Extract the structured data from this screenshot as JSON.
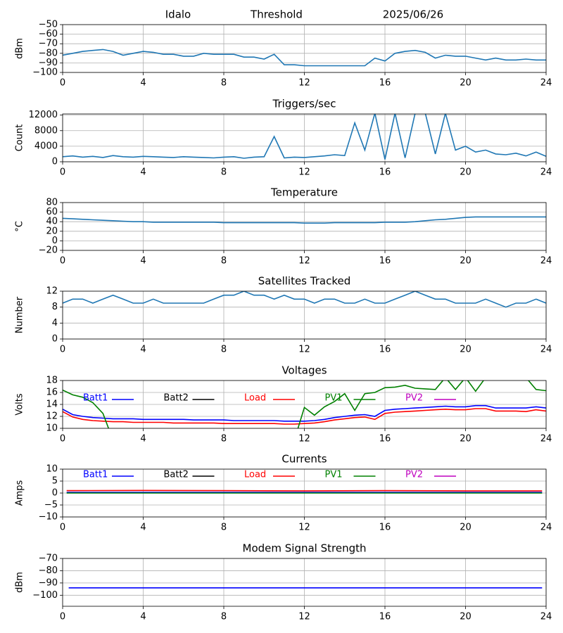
{
  "chart_data": [
    {
      "type": "line",
      "title_left": "Idalo",
      "title": "Threshold",
      "title_right": "2025/06/26",
      "ylabel": "dBm",
      "xlim": [
        0,
        24
      ],
      "xticks": [
        0,
        4,
        8,
        12,
        16,
        20,
        24
      ],
      "ylim": [
        -100,
        -50
      ],
      "yticks": [
        {
          "value": -100,
          "label": "−100"
        },
        {
          "value": -90,
          "label": "−90"
        },
        {
          "value": -80,
          "label": "−80"
        },
        {
          "value": -70,
          "label": "−70"
        },
        {
          "value": -60,
          "label": "−60"
        },
        {
          "value": -50,
          "label": "−50"
        }
      ],
      "grid": true,
      "x": [
        0,
        0.5,
        1,
        1.5,
        2,
        2.5,
        3,
        3.5,
        4,
        4.5,
        5,
        5.5,
        6,
        6.5,
        7,
        7.5,
        8,
        8.5,
        9,
        9.5,
        10,
        10.5,
        11,
        11.5,
        12,
        12.5,
        13,
        13.5,
        14,
        14.5,
        15,
        15.5,
        16,
        16.5,
        17,
        17.5,
        18,
        18.5,
        19,
        19.5,
        20,
        20.5,
        21,
        21.5,
        22,
        22.5,
        23,
        23.5,
        24
      ],
      "series": [
        {
          "color": "#1f77b4",
          "values": [
            -82,
            -80,
            -78,
            -77,
            -76,
            -78,
            -82,
            -80,
            -78,
            -79,
            -81,
            -81,
            -83,
            -83,
            -80,
            -81,
            -81,
            -81,
            -84,
            -84,
            -86,
            -81,
            -92,
            -92,
            -93,
            -93,
            -93,
            -93,
            -93,
            -93,
            -93,
            -85,
            -88,
            -80,
            -78,
            -77,
            -79,
            -85,
            -82,
            -83,
            -83,
            -85,
            -87,
            -85,
            -87,
            -87,
            -86,
            -87,
            -87
          ]
        }
      ]
    },
    {
      "type": "line",
      "title": "Triggers/sec",
      "ylabel": "Count",
      "xlim": [
        0,
        24
      ],
      "xticks": [
        0,
        4,
        8,
        12,
        16,
        20,
        24
      ],
      "ylim": [
        0,
        12300
      ],
      "yticks": [
        0,
        4000,
        8000,
        12000
      ],
      "grid": true,
      "x": [
        0,
        0.5,
        1,
        1.5,
        2,
        2.5,
        3,
        3.5,
        4,
        4.5,
        5,
        5.5,
        6,
        6.5,
        7,
        7.5,
        8,
        8.5,
        9,
        9.5,
        10,
        10.5,
        11,
        11.5,
        12,
        12.5,
        13,
        13.5,
        14,
        14.5,
        15,
        15.5,
        16,
        16.5,
        17,
        17.5,
        18,
        18.5,
        19,
        19.5,
        20,
        20.5,
        21,
        21.5,
        22,
        22.5,
        23,
        23.5,
        24
      ],
      "series": [
        {
          "color": "#1f77b4",
          "values": [
            1300,
            1500,
            1200,
            1400,
            1100,
            1600,
            1300,
            1200,
            1400,
            1300,
            1200,
            1100,
            1300,
            1200,
            1100,
            1000,
            1200,
            1300,
            900,
            1200,
            1300,
            6500,
            1000,
            1200,
            1100,
            1300,
            1500,
            1800,
            1600,
            10000,
            3000,
            12500,
            600,
            12500,
            1000,
            12500,
            12500,
            2000,
            12500,
            3000,
            4000,
            2500,
            3000,
            2000,
            1800,
            2200,
            1500,
            2500,
            1400
          ]
        }
      ]
    },
    {
      "type": "line",
      "title": "Temperature",
      "ylabel": "°C",
      "xlim": [
        0,
        24
      ],
      "xticks": [
        0,
        4,
        8,
        12,
        16,
        20,
        24
      ],
      "ylim": [
        -20,
        80
      ],
      "yticks": [
        {
          "value": -20,
          "label": "−20"
        },
        0,
        20,
        40,
        60,
        80
      ],
      "grid": true,
      "x": [
        0,
        0.5,
        1,
        1.5,
        2,
        2.5,
        3,
        3.5,
        4,
        4.5,
        5,
        5.5,
        6,
        6.5,
        7,
        7.5,
        8,
        8.5,
        9,
        9.5,
        10,
        10.5,
        11,
        11.5,
        12,
        12.5,
        13,
        13.5,
        14,
        14.5,
        15,
        15.5,
        16,
        16.5,
        17,
        17.5,
        18,
        18.5,
        19,
        19.5,
        20,
        20.5,
        21,
        21.5,
        22,
        22.5,
        23,
        23.5,
        24
      ],
      "series": [
        {
          "color": "#1f77b4",
          "values": [
            47,
            46,
            45,
            44,
            43,
            42,
            41,
            40,
            40,
            39,
            39,
            39,
            39,
            39,
            39,
            39,
            38,
            38,
            38,
            38,
            38,
            38,
            38,
            38,
            37,
            37,
            37,
            38,
            38,
            38,
            38,
            38,
            39,
            39,
            39,
            40,
            42,
            44,
            45,
            47,
            49,
            50,
            50,
            50,
            50,
            50,
            50,
            50,
            50
          ]
        }
      ]
    },
    {
      "type": "line",
      "title": "Satellites Tracked",
      "ylabel": "Number",
      "xlim": [
        0,
        24
      ],
      "xticks": [
        0,
        4,
        8,
        12,
        16,
        20,
        24
      ],
      "ylim": [
        0,
        12
      ],
      "yticks": [
        0,
        4,
        8,
        12
      ],
      "grid": true,
      "x": [
        0,
        0.5,
        1,
        1.5,
        2,
        2.5,
        3,
        3.5,
        4,
        4.5,
        5,
        5.5,
        6,
        6.5,
        7,
        7.5,
        8,
        8.5,
        9,
        9.5,
        10,
        10.5,
        11,
        11.5,
        12,
        12.5,
        13,
        13.5,
        14,
        14.5,
        15,
        15.5,
        16,
        16.5,
        17,
        17.5,
        18,
        18.5,
        19,
        19.5,
        20,
        20.5,
        21,
        21.5,
        22,
        22.5,
        23,
        23.5,
        24
      ],
      "series": [
        {
          "color": "#1f77b4",
          "values": [
            9,
            10,
            10,
            9,
            10,
            11,
            10,
            9,
            9,
            10,
            9,
            9,
            9,
            9,
            9,
            10,
            11,
            11,
            12,
            11,
            11,
            10,
            11,
            10,
            10,
            9,
            10,
            10,
            9,
            9,
            10,
            9,
            9,
            10,
            11,
            12,
            11,
            10,
            10,
            9,
            9,
            9,
            10,
            9,
            8,
            9,
            9,
            10,
            9
          ]
        }
      ]
    },
    {
      "type": "line",
      "title": "Voltages",
      "ylabel": "Volts",
      "xlim": [
        0,
        24
      ],
      "xticks": [
        0,
        4,
        8,
        12,
        16,
        20,
        24
      ],
      "ylim": [
        10,
        18
      ],
      "yticks": [
        10,
        12,
        14,
        16,
        18
      ],
      "grid": true,
      "x": [
        0,
        0.5,
        1,
        1.5,
        2,
        2.5,
        3,
        3.5,
        4,
        4.5,
        5,
        5.5,
        6,
        6.5,
        7,
        7.5,
        8,
        8.5,
        9,
        9.5,
        10,
        10.5,
        11,
        11.5,
        12,
        12.5,
        13,
        13.5,
        14,
        14.5,
        15,
        15.5,
        16,
        16.5,
        17,
        17.5,
        18,
        18.5,
        19,
        19.5,
        20,
        20.5,
        21,
        21.5,
        22,
        22.5,
        23,
        23.5,
        24
      ],
      "series": [
        {
          "name": "Batt1",
          "color": "#0000ff",
          "values": [
            13.2,
            12.3,
            12.0,
            11.8,
            11.7,
            11.6,
            11.6,
            11.6,
            11.5,
            11.5,
            11.5,
            11.5,
            11.5,
            11.4,
            11.4,
            11.4,
            11.4,
            11.3,
            11.3,
            11.3,
            11.3,
            11.3,
            11.2,
            11.2,
            11.2,
            11.3,
            11.5,
            11.8,
            12.0,
            12.2,
            12.3,
            12.0,
            13.0,
            13.2,
            13.3,
            13.4,
            13.5,
            13.6,
            13.7,
            13.6,
            13.6,
            13.8,
            13.8,
            13.4,
            13.4,
            13.4,
            13.4,
            13.6,
            13.4
          ]
        },
        {
          "name": "Batt2",
          "color": "#000000",
          "values": [
            null,
            null,
            null,
            null,
            null,
            null,
            null,
            null,
            null,
            null,
            null,
            null,
            null,
            null,
            null,
            null,
            null,
            null,
            null,
            null,
            null,
            null,
            null,
            null,
            null,
            null,
            null,
            null,
            null,
            null,
            null,
            null,
            null,
            null,
            null,
            null,
            null,
            null,
            null,
            null,
            null,
            null,
            null,
            null,
            null,
            null,
            null,
            null,
            null
          ]
        },
        {
          "name": "Load",
          "color": "#ff0000",
          "values": [
            12.8,
            11.9,
            11.5,
            11.3,
            11.2,
            11.1,
            11.1,
            11.0,
            11.0,
            11.0,
            11.0,
            10.9,
            10.9,
            10.9,
            10.9,
            10.9,
            10.8,
            10.8,
            10.8,
            10.8,
            10.8,
            10.8,
            10.7,
            10.7,
            10.8,
            10.9,
            11.1,
            11.4,
            11.6,
            11.8,
            11.9,
            11.5,
            12.5,
            12.7,
            12.8,
            12.9,
            13.0,
            13.1,
            13.2,
            13.1,
            13.1,
            13.3,
            13.3,
            12.9,
            12.9,
            12.9,
            12.8,
            13.1,
            12.9
          ]
        },
        {
          "name": "PV1",
          "color": "#008000",
          "values": [
            16.4,
            15.6,
            15.2,
            14.3,
            12.5,
            8,
            null,
            null,
            null,
            null,
            null,
            null,
            null,
            null,
            null,
            null,
            null,
            null,
            null,
            null,
            null,
            null,
            null,
            8,
            13.5,
            12.2,
            13.6,
            14.5,
            15.8,
            13.0,
            15.8,
            16.0,
            16.8,
            16.9,
            17.2,
            16.7,
            16.6,
            16.5,
            18.5,
            16.5,
            18.5,
            16.2,
            18.5,
            18.5,
            18.5,
            18.5,
            18.5,
            16.5,
            16.3
          ]
        },
        {
          "name": "PV2",
          "color": "#bf00bf",
          "values": [
            null,
            null,
            null,
            null,
            null,
            null,
            null,
            null,
            null,
            null,
            null,
            null,
            null,
            null,
            null,
            null,
            null,
            null,
            null,
            null,
            null,
            null,
            null,
            null,
            null,
            null,
            null,
            null,
            null,
            null,
            null,
            null,
            null,
            null,
            null,
            null,
            null,
            null,
            null,
            null,
            null,
            null,
            null,
            null,
            null,
            null,
            null,
            null,
            null
          ]
        }
      ]
    },
    {
      "type": "line",
      "title": "Currents",
      "ylabel": "Amps",
      "xlim": [
        0,
        24
      ],
      "xticks": [
        0,
        4,
        8,
        12,
        16,
        20,
        24
      ],
      "ylim": [
        -10,
        10
      ],
      "yticks": [
        {
          "value": -10,
          "label": "−10"
        },
        {
          "value": -5,
          "label": "−5"
        },
        0,
        5,
        10
      ],
      "grid": true,
      "x": [
        0.2,
        4,
        8,
        12,
        16,
        20,
        23.8
      ],
      "series": [
        {
          "name": "Batt1",
          "color": "#0000ff",
          "values": [
            0.3,
            0.3,
            0.3,
            0.3,
            0.3,
            0.3,
            0.3
          ]
        },
        {
          "name": "Batt2",
          "color": "#000000",
          "values": [
            null,
            null,
            null,
            null,
            null,
            null,
            null
          ]
        },
        {
          "name": "Load",
          "color": "#ff0000",
          "values": [
            1.0,
            1.1,
            1.0,
            0.9,
            1.0,
            0.9,
            0.9
          ]
        },
        {
          "name": "PV1",
          "color": "#008000",
          "values": [
            0,
            0,
            0,
            0,
            0,
            0,
            0
          ]
        },
        {
          "name": "PV2",
          "color": "#bf00bf",
          "values": [
            null,
            null,
            null,
            null,
            null,
            null,
            null
          ]
        }
      ]
    },
    {
      "type": "line",
      "title": "Modem Signal Strength",
      "ylabel": "dBm",
      "xlim": [
        0,
        24
      ],
      "xticks": [
        0,
        4,
        8,
        12,
        16,
        20,
        24
      ],
      "ylim": [
        -109,
        -70
      ],
      "yticks": [
        {
          "value": -100,
          "label": "−100"
        },
        {
          "value": -90,
          "label": "−90"
        },
        {
          "value": -80,
          "label": "−80"
        },
        {
          "value": -70,
          "label": "−70"
        }
      ],
      "grid": true,
      "x": [
        0.3,
        23.8
      ],
      "series": [
        {
          "color": "#0000ff",
          "values": [
            -94,
            -94
          ]
        }
      ]
    }
  ]
}
